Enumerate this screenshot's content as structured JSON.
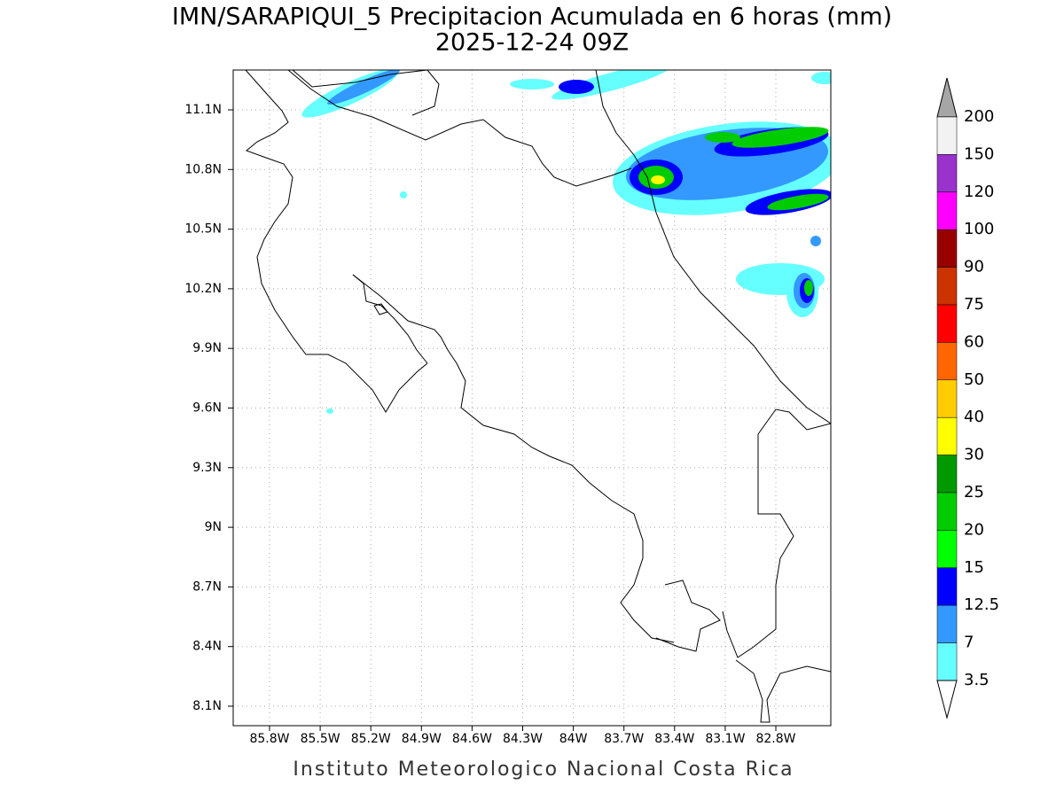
{
  "title": "IMN/SARAPIQUI_5 Precipitacion Acumulada en 6 horas (mm)",
  "subtitle": "2025-12-24 09Z",
  "map": {
    "lat_labels": [
      "11.1N",
      "10.8N",
      "10.5N",
      "10.2N",
      "9.9N",
      "9.6N",
      "9.3N",
      "9N",
      "8.7N",
      "8.4N",
      "8.1N"
    ],
    "lon_labels": [
      "85.8W",
      "85.5W",
      "85.2W",
      "84.9W",
      "84.6W",
      "84.3W",
      "84W",
      "83.7W",
      "83.4W",
      "83.1W",
      "82.8W"
    ]
  },
  "colorbar": {
    "levels": [
      200,
      150,
      120,
      100,
      90,
      75,
      60,
      50,
      40,
      30,
      25,
      20,
      15,
      12.5,
      7,
      3.5
    ],
    "colors": [
      "#a6a6a6",
      "#f2f2f2",
      "#9933cc",
      "#ff00ff",
      "#990000",
      "#cc3300",
      "#ff0000",
      "#ff6600",
      "#ffcc00",
      "#ffff00",
      "#009900",
      "#00cc00",
      "#00ff00",
      "#0000ff",
      "#3399ff",
      "#66ffff",
      "#ffffff"
    ]
  },
  "footer": "Instituto Meteorologico Nacional Costa Rica"
}
